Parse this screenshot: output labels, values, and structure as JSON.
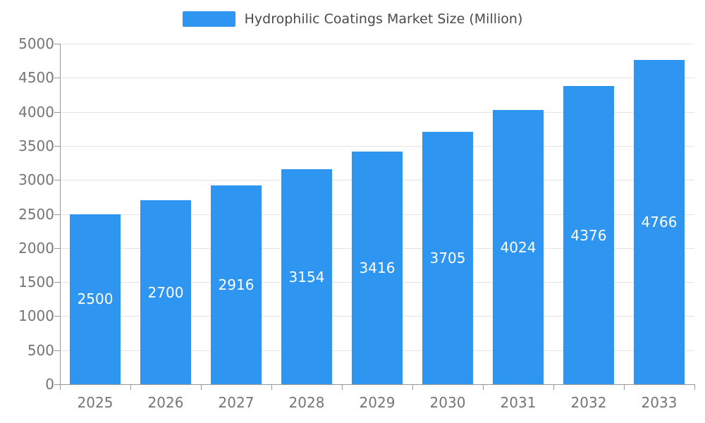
{
  "chart_data": {
    "type": "bar",
    "title": "Hydrophilic Coatings Market Size (Million)",
    "categories": [
      "2025",
      "2026",
      "2027",
      "2028",
      "2029",
      "2030",
      "2031",
      "2032",
      "2033"
    ],
    "series": [
      {
        "name": "Hydrophilic Coatings Market Size (Million)",
        "values": [
          2500,
          2700,
          2916,
          3154,
          3416,
          3705,
          4024,
          4376,
          4766
        ]
      }
    ],
    "values": [
      2500,
      2700,
      2916,
      3154,
      3416,
      3705,
      4024,
      4376,
      4766
    ],
    "xlabel": "",
    "ylabel": "",
    "ylim": [
      0,
      5000
    ],
    "y_tick_step": 500,
    "grid": true,
    "legend_position": "top",
    "value_label_position": "inside-center"
  },
  "style": {
    "bar_color": "#2e96f0",
    "value_label_color": "#ffffff",
    "axis_color": "#999999",
    "grid_color": "#e3e3e3",
    "tick_label_color": "#757575",
    "legend_text_color": "#4a4a4a",
    "background": "#ffffff"
  }
}
